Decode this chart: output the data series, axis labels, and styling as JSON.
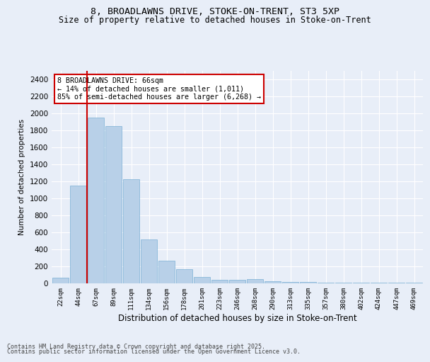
{
  "title_line1": "8, BROADLAWNS DRIVE, STOKE-ON-TRENT, ST3 5XP",
  "title_line2": "Size of property relative to detached houses in Stoke-on-Trent",
  "xlabel": "Distribution of detached houses by size in Stoke-on-Trent",
  "ylabel": "Number of detached properties",
  "annotation_title": "8 BROADLAWNS DRIVE: 66sqm",
  "annotation_line2": "← 14% of detached houses are smaller (1,011)",
  "annotation_line3": "85% of semi-detached houses are larger (6,268) →",
  "footer_line1": "Contains HM Land Registry data © Crown copyright and database right 2025.",
  "footer_line2": "Contains public sector information licensed under the Open Government Licence v3.0.",
  "bar_color": "#b8d0e8",
  "bar_edge_color": "#7aafd4",
  "highlight_line_color": "#cc0000",
  "annotation_box_color": "#cc0000",
  "background_color": "#e8eef8",
  "grid_color": "#ffffff",
  "categories": [
    "22sqm",
    "44sqm",
    "67sqm",
    "89sqm",
    "111sqm",
    "134sqm",
    "156sqm",
    "178sqm",
    "201sqm",
    "223sqm",
    "246sqm",
    "268sqm",
    "290sqm",
    "313sqm",
    "335sqm",
    "357sqm",
    "380sqm",
    "402sqm",
    "424sqm",
    "447sqm",
    "469sqm"
  ],
  "values": [
    60,
    1150,
    1950,
    1850,
    1220,
    510,
    260,
    165,
    75,
    40,
    40,
    50,
    20,
    15,
    10,
    5,
    5,
    5,
    3,
    2,
    2
  ],
  "highlight_bin_index": 1,
  "ylim": [
    0,
    2500
  ],
  "yticks": [
    0,
    200,
    400,
    600,
    800,
    1000,
    1200,
    1400,
    1600,
    1800,
    2000,
    2200,
    2400
  ]
}
